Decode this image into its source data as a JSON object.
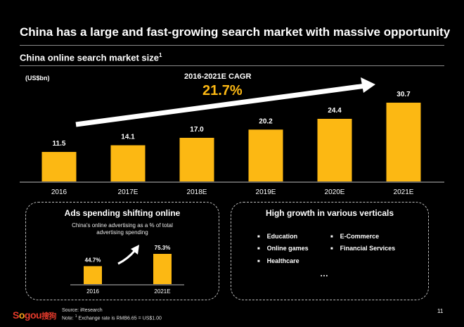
{
  "header": {
    "title": "China has a large and fast-growing search market with massive opportunity",
    "subtitle": "China online search market size",
    "subtitle_note_mark": "1"
  },
  "chart_data": [
    {
      "type": "bar",
      "title": "China online search market size",
      "ylabel": "(US$bn)",
      "categories": [
        "2016",
        "2017E",
        "2018E",
        "2019E",
        "2020E",
        "2021E"
      ],
      "values": [
        11.5,
        14.1,
        17.0,
        20.2,
        24.4,
        30.7
      ],
      "value_labels": [
        "11.5",
        "14.1",
        "17.0",
        "20.2",
        "24.4",
        "30.7"
      ],
      "ylim": [
        0,
        31
      ],
      "bar_color": "#fcb813",
      "annotation": {
        "label": "2016-2021E CAGR",
        "value": "21.7%"
      },
      "grid": false
    },
    {
      "type": "bar",
      "title": "Ads spending shifting online",
      "note": "China's online advertising as a % of total advertising spending",
      "categories": [
        "2016",
        "2021E"
      ],
      "values": [
        44.7,
        75.3
      ],
      "value_labels": [
        "44.7%",
        "75.3%"
      ],
      "ylim": [
        0,
        80
      ],
      "bar_color": "#fcb813",
      "grid": false
    }
  ],
  "ads_box": {
    "title": "Ads spending shifting online",
    "note_line1": "China's online advertising as a % of total",
    "note_line2": "advertising spending"
  },
  "verticals": {
    "title": "High growth in various verticals",
    "items": [
      "Education",
      "E-Commerce",
      "Online games",
      "Financial Services",
      "Healthcare"
    ],
    "more": "…"
  },
  "footer": {
    "source": "Source: iResearch",
    "note_prefix": "Note: ",
    "note_mark": "1",
    "note_text": " Exchange rate is RMB6.65 = US$1.00",
    "page_number": "11",
    "logo_text_a": "S",
    "logo_text_b": "o",
    "logo_text_c": "gou",
    "logo_cn": "搜狗"
  },
  "colors": {
    "accent": "#fcb813",
    "logo_red": "#e53a2b"
  }
}
